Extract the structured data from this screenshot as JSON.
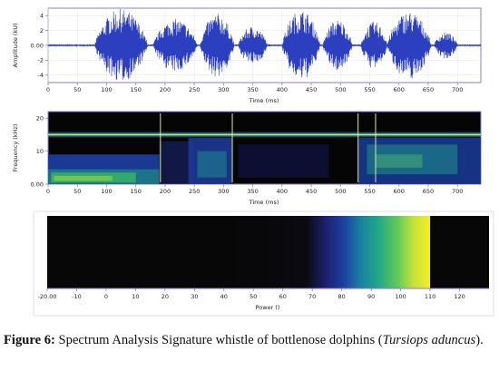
{
  "caption": {
    "label": "Figure 6:",
    "text_before": " Spectrum Analysis Signature whistle of bottlenose dolphins (",
    "species": "Tursiops aduncus",
    "text_after": ")."
  },
  "colors": {
    "waveform": "#2b3fbf",
    "frame": "#8c7bd0",
    "spec_low": "#0a0a0a",
    "spec_mid": "#1e2e9e",
    "spec_teal": "#1aa090",
    "spec_high": "#f4ec2a"
  },
  "chart_data": [
    {
      "type": "line",
      "panel": "waveform",
      "xlabel": "Time (ms)",
      "ylabel": "Amplitude (kU)",
      "xlim": [
        0,
        740
      ],
      "ylim": [
        -5,
        5
      ],
      "x_ticks": [
        "0",
        "50",
        "100",
        "150",
        "200",
        "250",
        "300",
        "350",
        "400",
        "450",
        "500",
        "550",
        "600",
        "650",
        "700"
      ],
      "y_ticks": [
        "4",
        "2",
        "0.00",
        "-2",
        "-4"
      ],
      "bursts": [
        {
          "start": 80,
          "end": 170,
          "peak": 4.9
        },
        {
          "start": 180,
          "end": 255,
          "peak": 3.6
        },
        {
          "start": 260,
          "end": 318,
          "peak": 4.3
        },
        {
          "start": 325,
          "end": 375,
          "peak": 2.6
        },
        {
          "start": 400,
          "end": 465,
          "peak": 4.8
        },
        {
          "start": 470,
          "end": 520,
          "peak": 3.5
        },
        {
          "start": 535,
          "end": 580,
          "peak": 3.2
        },
        {
          "start": 580,
          "end": 655,
          "peak": 4.6
        },
        {
          "start": 660,
          "end": 700,
          "peak": 1.8
        }
      ],
      "grid": true
    },
    {
      "type": "heatmap",
      "panel": "spectrogram",
      "xlabel": "Time (ms)",
      "ylabel": "Frequency (kHz)",
      "xlim": [
        0,
        740
      ],
      "ylim": [
        0,
        22
      ],
      "x_ticks": [
        "0",
        "50",
        "100",
        "150",
        "200",
        "250",
        "300",
        "350",
        "400",
        "450",
        "500",
        "550",
        "600",
        "650",
        "700"
      ],
      "y_ticks": [
        "20",
        "10",
        "0.00"
      ],
      "whistle_band_khz": 15,
      "grid": false
    },
    {
      "type": "heatmap",
      "panel": "colorbar",
      "xlabel": "Power ()",
      "xlim": [
        -20,
        130
      ],
      "x_ticks": [
        "-20.00",
        "-10",
        "0",
        "10",
        "20",
        "30",
        "40",
        "50",
        "60",
        "70",
        "80",
        "90",
        "100",
        "110",
        "120"
      ],
      "gradient_start": 40,
      "gradient_end": 110
    }
  ]
}
